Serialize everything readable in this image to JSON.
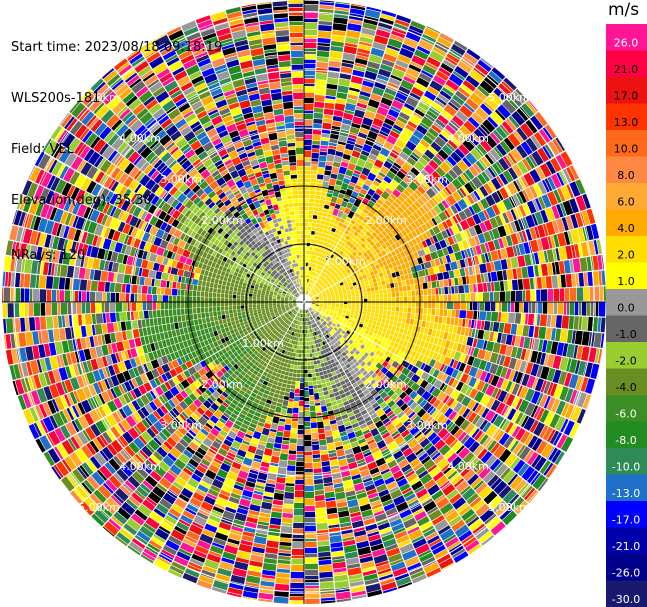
{
  "header": {
    "start_time": "Start time: 2023/08/18 09:18:19",
    "instrument": "WLS200s-181",
    "field": "Field: VEL",
    "elevation": "Elevation(deg): 35.30",
    "nrays": "NRays: 120"
  },
  "chart_data": {
    "type": "heatmap",
    "projection": "polar-ppi",
    "title": "",
    "field": "VEL",
    "units": "m/s",
    "n_rays": 120,
    "elevation_deg": 35.3,
    "ring_labels_km": [
      "1.00km",
      "2.00km",
      "3.00km",
      "4.00km",
      "5.00km"
    ],
    "range_labels": [
      {
        "angle_deg": 315,
        "text": "1.00km"
      },
      {
        "angle_deg": 135,
        "text": "1.00km"
      },
      {
        "angle_deg": 315,
        "text": "2.00km"
      },
      {
        "angle_deg": 45,
        "text": "2.00km"
      },
      {
        "angle_deg": 135,
        "text": "2.00km"
      },
      {
        "angle_deg": 225,
        "text": "2.00km"
      },
      {
        "angle_deg": 315,
        "text": "3.00km"
      },
      {
        "angle_deg": 45,
        "text": "3.00km"
      },
      {
        "angle_deg": 135,
        "text": "3.00km"
      },
      {
        "angle_deg": 225,
        "text": "3.00km"
      },
      {
        "angle_deg": 315,
        "text": "4.00km"
      },
      {
        "angle_deg": 45,
        "text": "4.00km"
      },
      {
        "angle_deg": 135,
        "text": "4.00km"
      },
      {
        "angle_deg": 225,
        "text": "4.00km"
      },
      {
        "angle_deg": 315,
        "text": "5.00km"
      },
      {
        "angle_deg": 45,
        "text": "5.00km"
      },
      {
        "angle_deg": 135,
        "text": "5.00km"
      },
      {
        "angle_deg": 225,
        "text": "5.00km"
      }
    ],
    "colorbar": {
      "label": "m/s",
      "ticks": [
        "26.0",
        "21.0",
        "17.0",
        "13.0",
        "10.0",
        "8.0",
        "6.0",
        "4.0",
        "2.0",
        "1.0",
        "0.0",
        "-1.0",
        "-2.0",
        "-4.0",
        "-6.0",
        "-8.0",
        "-10.0",
        "-13.0",
        "-17.0",
        "-21.0",
        "-26.0",
        "-30.0"
      ],
      "colors": [
        "#ff1493",
        "#ff0044",
        "#ee1111",
        "#ff3300",
        "#ff6a1a",
        "#ff8844",
        "#ffaa33",
        "#ffaa00",
        "#ffdd00",
        "#ffff00",
        "#999999",
        "#666666",
        "#9acd32",
        "#6b8e23",
        "#3a8e23",
        "#228b22",
        "#2e8b57",
        "#1e70c8",
        "#0000ff",
        "#0000aa",
        "#00008b",
        "#191970"
      ]
    },
    "wind_pattern": "negative velocities (greens/grey) to west and south-west, positive velocities (yellow/orange) to north-east and east within about 2.5 km; noisy random colours beyond"
  }
}
